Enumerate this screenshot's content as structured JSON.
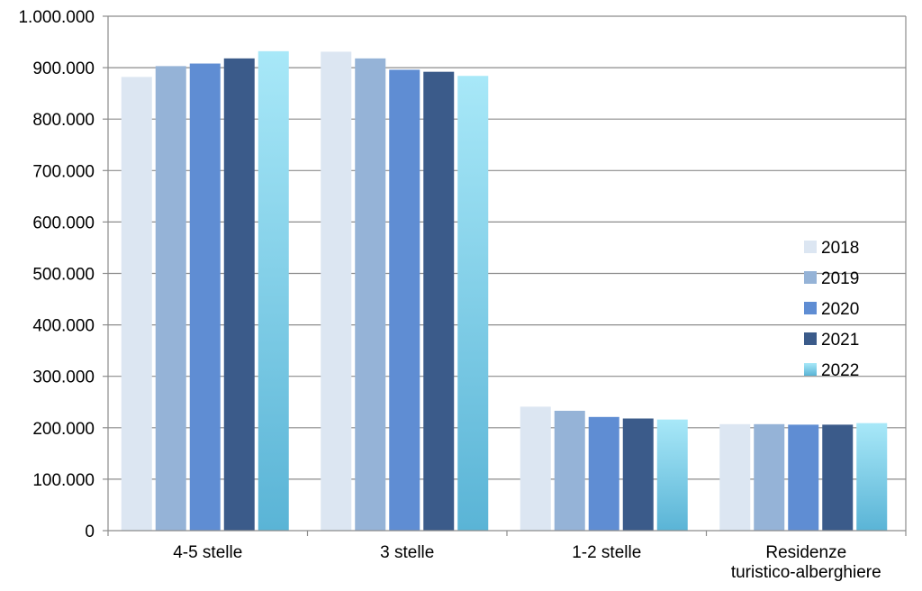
{
  "chart_data": {
    "type": "bar",
    "title": "",
    "xlabel": "",
    "ylabel": "",
    "ylim": [
      0,
      1000000
    ],
    "yticks": [
      0,
      100000,
      200000,
      300000,
      400000,
      500000,
      600000,
      700000,
      800000,
      900000,
      1000000
    ],
    "ytick_labels": [
      "0",
      "100.000",
      "200.000",
      "300.000",
      "400.000",
      "500.000",
      "600.000",
      "700.000",
      "800.000",
      "900.000",
      "1.000.000"
    ],
    "grid": true,
    "legend_position": "right",
    "categories": [
      [
        "4-5 stelle"
      ],
      [
        "3 stelle"
      ],
      [
        "1-2 stelle"
      ],
      [
        "Residenze",
        "turistico-alberghiere"
      ]
    ],
    "series": [
      {
        "name": "2018",
        "color": "#dce6f2",
        "values": [
          882000,
          931000,
          241000,
          207000
        ]
      },
      {
        "name": "2019",
        "color": "#95b3d7",
        "values": [
          903000,
          918000,
          233000,
          207000
        ]
      },
      {
        "name": "2020",
        "color": "#5f8dd3",
        "values": [
          908000,
          896000,
          221000,
          206000
        ]
      },
      {
        "name": "2021",
        "color": "#3b5b8a",
        "values": [
          918000,
          892000,
          218000,
          206000
        ]
      },
      {
        "name": "2022",
        "color": "#a8e8f8",
        "color_bottom": "#5ab4d6",
        "values": [
          932000,
          884000,
          216000,
          209000
        ]
      }
    ]
  }
}
